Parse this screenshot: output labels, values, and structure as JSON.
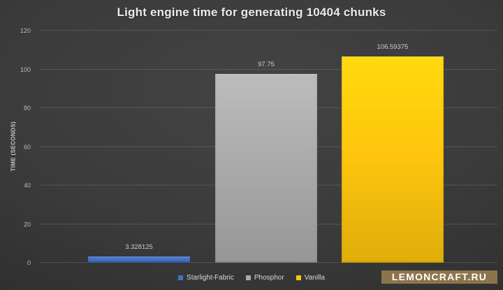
{
  "chart_data": {
    "type": "bar",
    "title": "Light engine time for generating 10404 chunks",
    "categories": [
      "Starlight-Fabric",
      "Phosphor",
      "Vanilla"
    ],
    "values": [
      3.328125,
      97.75,
      106.59375
    ],
    "value_labels": [
      "3.328125",
      "97.75",
      "106.59375"
    ],
    "bar_colors": [
      "#4472c4",
      "#ababab",
      "#fec60d"
    ],
    "xlabel": "",
    "ylabel": "TIME (SECONDS)",
    "ylim": [
      0,
      120
    ],
    "yticks": [
      0,
      20,
      40,
      60,
      80,
      100,
      120
    ],
    "grid": true,
    "legend_position": "bottom"
  },
  "watermark": {
    "text": "LEMONCRAFT.RU",
    "background": "#8d744d",
    "text_color": "#ffffff"
  }
}
